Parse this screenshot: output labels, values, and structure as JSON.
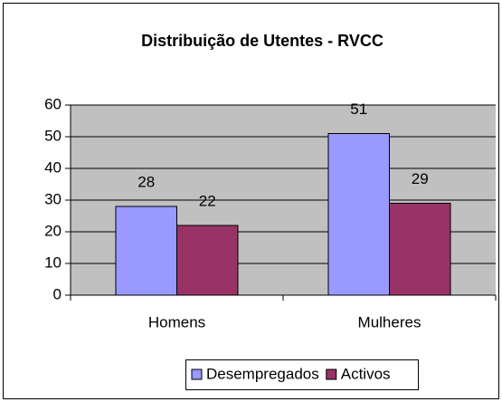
{
  "chart_data": {
    "type": "bar",
    "title": "Distribuição de Utentes  - RVCC",
    "categories": [
      "Homens",
      "Mulheres"
    ],
    "series": [
      {
        "name": "Desempregados",
        "color": "#9999ff",
        "values": [
          28,
          51
        ]
      },
      {
        "name": "Activos",
        "color": "#993366",
        "values": [
          22,
          29
        ]
      }
    ],
    "ylim": [
      0,
      60
    ],
    "yticks": [
      0,
      10,
      20,
      30,
      40,
      50,
      60
    ],
    "grid": true,
    "legend": "bottom"
  }
}
